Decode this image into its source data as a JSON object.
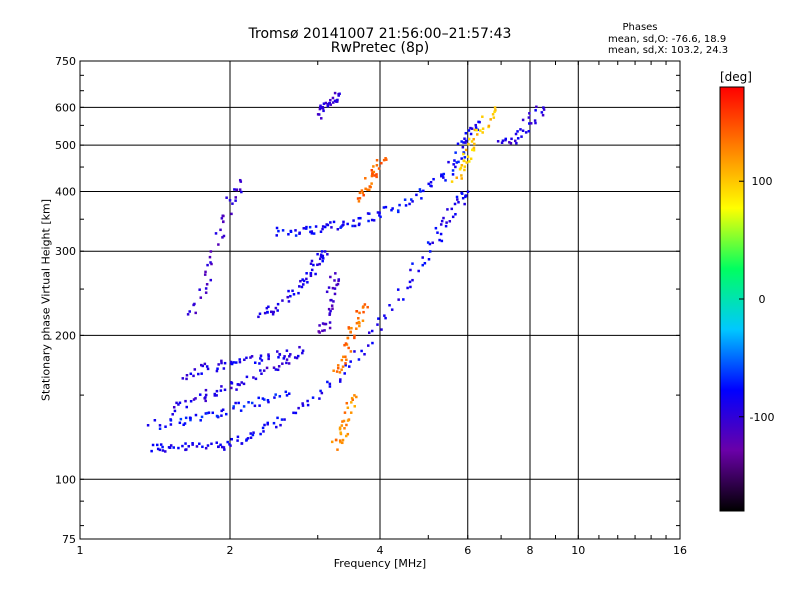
{
  "chart_data": {
    "type": "scatter",
    "title": "Tromsø 20141007 21:56:00–21:57:43",
    "subtitle": "RwPretec (8p)",
    "xlabel": "Frequency [MHz]",
    "ylabel": "Stationary phase Virtual Height [km]",
    "x_scale": "log",
    "y_scale": "log",
    "xlim": [
      1,
      16
    ],
    "ylim": [
      75,
      750
    ],
    "x_ticks": [
      1,
      2,
      4,
      6,
      8,
      10,
      16
    ],
    "y_ticks": [
      75,
      100,
      200,
      300,
      400,
      500,
      600,
      750
    ],
    "x_gridlines": [
      2,
      4,
      6,
      8,
      10
    ],
    "y_gridlines": [
      100,
      200,
      300,
      400,
      500,
      600
    ],
    "grid": true,
    "phases": {
      "header": "Phases",
      "o_mode": "mean, sd,O: -76.6, 18.9",
      "x_mode": "mean, sd,X: 103.2, 24.3"
    },
    "colorbar": {
      "label": "[deg]",
      "ticks": [
        -100,
        0,
        100
      ],
      "range": [
        -180,
        180
      ],
      "colors": [
        "#000000",
        "#6a00a8",
        "#0000ff",
        "#00c8ff",
        "#00ff60",
        "#ffff00",
        "#ff8000",
        "#ff0000"
      ]
    },
    "series": [
      {
        "x": [
          1.39,
          1.5,
          1.7,
          1.9,
          2.1,
          2.3,
          2.6,
          3.0,
          3.5,
          4.0,
          4.5,
          5.0,
          5.4,
          5.7,
          6.0
        ],
        "y": [
          117,
          116,
          117,
          118,
          121,
          125,
          135,
          150,
          175,
          210,
          255,
          300,
          340,
          375,
          400
        ],
        "phase": -85
      },
      {
        "x": [
          2.45,
          2.8,
          3.0,
          3.3,
          3.6,
          4.0,
          4.5,
          5.0,
          5.5,
          5.8,
          6.0,
          6.3
        ],
        "y": [
          330,
          332,
          335,
          340,
          346,
          360,
          380,
          410,
          440,
          480,
          520,
          560
        ],
        "phase": -80
      },
      {
        "x": [
          1.6,
          1.8,
          2.0,
          2.2,
          2.5,
          2.8
        ],
        "y": [
          165,
          170,
          175,
          178,
          182,
          186
        ],
        "phase": -90
      },
      {
        "x": [
          1.5,
          1.7,
          1.9,
          2.1,
          2.4,
          2.7
        ],
        "y": [
          140,
          148,
          152,
          160,
          170,
          180
        ],
        "phase": -95
      },
      {
        "x": [
          1.4,
          1.6,
          1.8,
          2.0,
          2.3,
          2.6
        ],
        "y": [
          130,
          133,
          137,
          140,
          145,
          150
        ],
        "phase": -75
      },
      {
        "x": [
          1.65,
          1.8,
          1.9,
          2.0,
          2.1
        ],
        "y": [
          220,
          260,
          320,
          380,
          420
        ],
        "phase": -105
      },
      {
        "x": [
          2.3,
          2.5,
          2.7,
          2.9,
          3.0,
          3.1
        ],
        "y": [
          220,
          230,
          250,
          270,
          290,
          300
        ],
        "phase": -90
      },
      {
        "x": [
          3.3,
          3.4,
          3.5,
          3.6,
          3.7
        ],
        "y": [
          165,
          180,
          200,
          215,
          230
        ],
        "phase": 135
      },
      {
        "x": [
          3.25,
          3.35,
          3.45,
          3.55
        ],
        "y": [
          118,
          125,
          135,
          150
        ],
        "phase": 125
      },
      {
        "x": [
          3.6,
          3.75,
          3.9,
          4.1
        ],
        "y": [
          390,
          410,
          440,
          470
        ],
        "phase": 140
      },
      {
        "x": [
          3.05,
          3.15,
          3.2,
          3.25
        ],
        "y": [
          200,
          220,
          245,
          270
        ],
        "phase": -110
      },
      {
        "x": [
          5.7,
          5.9,
          6.1,
          6.4,
          6.8
        ],
        "y": [
          420,
          460,
          500,
          540,
          600
        ],
        "phase": 100
      },
      {
        "x": [
          3.0,
          3.1,
          3.2,
          3.3
        ],
        "y": [
          580,
          600,
          620,
          640
        ],
        "phase": -100
      },
      {
        "x": [
          7.0,
          7.5,
          8.0,
          8.5
        ],
        "y": [
          500,
          520,
          560,
          600
        ],
        "phase": -95
      }
    ]
  }
}
